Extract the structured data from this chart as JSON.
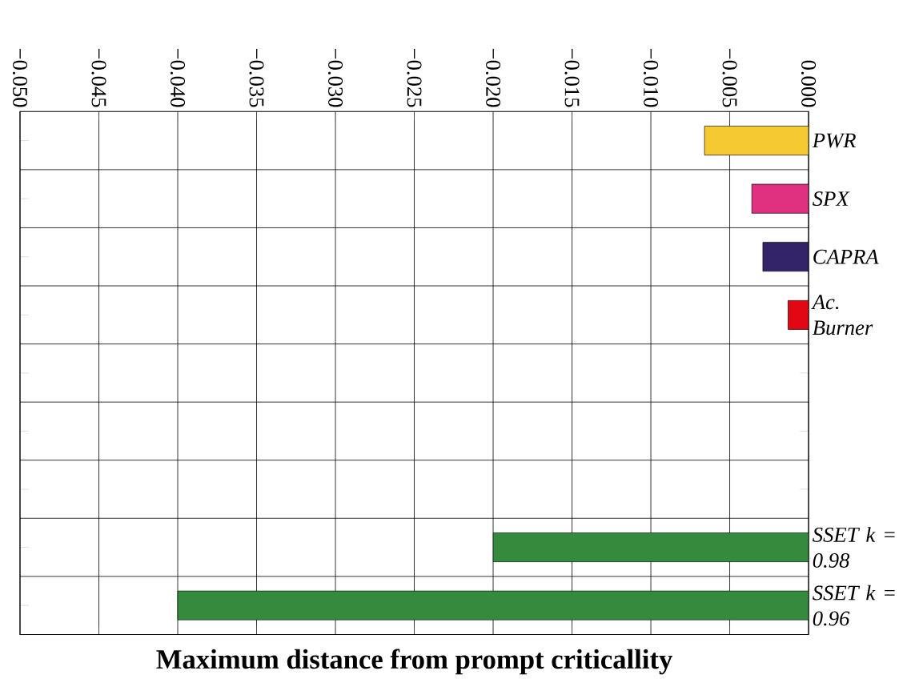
{
  "chart_data": {
    "type": "bar",
    "orientation": "horizontal",
    "xlabel": "Maximum distance from prompt criticallity",
    "categories": [
      "PWR",
      "SPX",
      "CAPRA",
      "Ac. Burner",
      null,
      null,
      null,
      "SSET k = 0.98",
      "SSET k = 0.96"
    ],
    "values": [
      -0.0066,
      -0.0036,
      -0.0029,
      -0.0013,
      null,
      null,
      null,
      -0.02,
      -0.04
    ],
    "colors": [
      "#f5c932",
      "#e03080",
      "#332468",
      "#e30613",
      null,
      null,
      null,
      "#368a3e",
      "#368a3e"
    ],
    "xlim": [
      -0.05,
      0
    ],
    "xticks": [
      {
        "value": -0.05,
        "label": "−0.050"
      },
      {
        "value": -0.045,
        "label": "−0.045"
      },
      {
        "value": -0.04,
        "label": "−0.040"
      },
      {
        "value": -0.035,
        "label": "−0.035"
      },
      {
        "value": -0.03,
        "label": "−0.030"
      },
      {
        "value": -0.025,
        "label": "−0.025"
      },
      {
        "value": -0.02,
        "label": "−0.020"
      },
      {
        "value": -0.015,
        "label": "−0.015"
      },
      {
        "value": -0.01,
        "label": "−0.010"
      },
      {
        "value": -0.005,
        "label": "−0.005"
      },
      {
        "value": 0,
        "label": "0.000"
      }
    ],
    "grid": true
  }
}
